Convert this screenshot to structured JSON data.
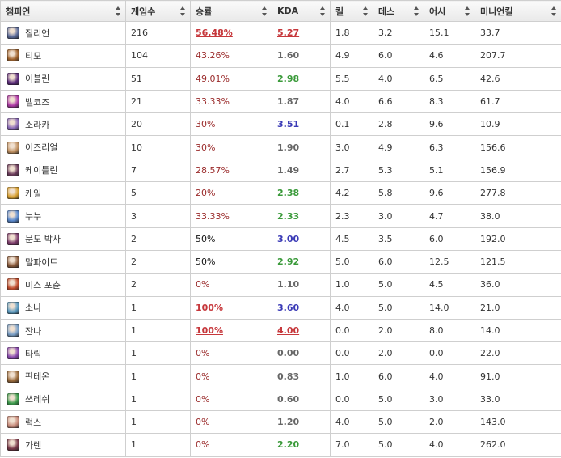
{
  "headers": [
    "챔피언",
    "게임수",
    "승률",
    "KDA",
    "킬",
    "데스",
    "어시",
    "미니언킬"
  ],
  "rows": [
    {
      "champion": "질리언",
      "games": "216",
      "winrate": "56.48%",
      "kda": "5.27",
      "kills": "1.8",
      "deaths": "3.2",
      "assists": "15.1",
      "cs": "33.7",
      "icon_color": "#5b6b9a"
    },
    {
      "champion": "티모",
      "games": "104",
      "winrate": "43.26%",
      "kda": "1.60",
      "kills": "4.9",
      "deaths": "6.0",
      "assists": "4.6",
      "cs": "207.7",
      "icon_color": "#a0622c"
    },
    {
      "champion": "이블린",
      "games": "51",
      "winrate": "49.01%",
      "kda": "2.98",
      "kills": "5.5",
      "deaths": "4.0",
      "assists": "6.5",
      "cs": "42.6",
      "icon_color": "#5a2a7a"
    },
    {
      "champion": "벨코즈",
      "games": "21",
      "winrate": "33.33%",
      "kda": "1.87",
      "kills": "4.0",
      "deaths": "6.6",
      "assists": "8.3",
      "cs": "61.7",
      "icon_color": "#b03aa8"
    },
    {
      "champion": "소라카",
      "games": "20",
      "winrate": "30%",
      "kda": "3.51",
      "kills": "0.1",
      "deaths": "2.8",
      "assists": "9.6",
      "cs": "10.9",
      "icon_color": "#8a6ab8"
    },
    {
      "champion": "이즈리얼",
      "games": "10",
      "winrate": "30%",
      "kda": "1.90",
      "kills": "3.0",
      "deaths": "4.9",
      "assists": "6.3",
      "cs": "156.6",
      "icon_color": "#c09060"
    },
    {
      "champion": "케이틀린",
      "games": "7",
      "winrate": "28.57%",
      "kda": "1.49",
      "kills": "2.7",
      "deaths": "5.3",
      "assists": "5.1",
      "cs": "156.9",
      "icon_color": "#6a3a5a"
    },
    {
      "champion": "케일",
      "games": "5",
      "winrate": "20%",
      "kda": "2.38",
      "kills": "4.2",
      "deaths": "5.8",
      "assists": "9.6",
      "cs": "277.8",
      "icon_color": "#d8a030"
    },
    {
      "champion": "누누",
      "games": "3",
      "winrate": "33.33%",
      "kda": "2.33",
      "kills": "2.3",
      "deaths": "3.0",
      "assists": "4.7",
      "cs": "38.0",
      "icon_color": "#5a8ad0"
    },
    {
      "champion": "문도 박사",
      "games": "2",
      "winrate": "50%",
      "kda": "3.00",
      "kills": "4.5",
      "deaths": "3.5",
      "assists": "6.0",
      "cs": "192.0",
      "icon_color": "#7a3a6a"
    },
    {
      "champion": "말파이트",
      "games": "2",
      "winrate": "50%",
      "kda": "2.92",
      "kills": "5.0",
      "deaths": "6.0",
      "assists": "12.5",
      "cs": "121.5",
      "icon_color": "#8a5a3a"
    },
    {
      "champion": "미스 포츈",
      "games": "2",
      "winrate": "0%",
      "kda": "1.10",
      "kills": "1.0",
      "deaths": "5.0",
      "assists": "4.5",
      "cs": "36.0",
      "icon_color": "#c04a2a"
    },
    {
      "champion": "소나",
      "games": "1",
      "winrate": "100%",
      "kda": "3.60",
      "kills": "4.0",
      "deaths": "5.0",
      "assists": "14.0",
      "cs": "21.0",
      "icon_color": "#5a9ac0"
    },
    {
      "champion": "잔나",
      "games": "1",
      "winrate": "100%",
      "kda": "4.00",
      "kills": "0.0",
      "deaths": "2.0",
      "assists": "8.0",
      "cs": "14.0",
      "icon_color": "#7aa0c8"
    },
    {
      "champion": "타릭",
      "games": "1",
      "winrate": "0%",
      "kda": "0.00",
      "kills": "0.0",
      "deaths": "2.0",
      "assists": "0.0",
      "cs": "22.0",
      "icon_color": "#8a4ab0"
    },
    {
      "champion": "판테온",
      "games": "1",
      "winrate": "0%",
      "kda": "0.83",
      "kills": "1.0",
      "deaths": "6.0",
      "assists": "4.0",
      "cs": "91.0",
      "icon_color": "#9a6a3a"
    },
    {
      "champion": "쓰레쉬",
      "games": "1",
      "winrate": "0%",
      "kda": "0.60",
      "kills": "0.0",
      "deaths": "5.0",
      "assists": "3.0",
      "cs": "33.0",
      "icon_color": "#3a9a4a"
    },
    {
      "champion": "럭스",
      "games": "1",
      "winrate": "0%",
      "kda": "1.20",
      "kills": "4.0",
      "deaths": "5.0",
      "assists": "2.0",
      "cs": "143.0",
      "icon_color": "#c88a7a"
    },
    {
      "champion": "가렌",
      "games": "1",
      "winrate": "0%",
      "kda": "2.20",
      "kills": "7.0",
      "deaths": "5.0",
      "assists": "4.0",
      "cs": "262.0",
      "icon_color": "#7a3a4a"
    }
  ],
  "colors": {
    "win_high": "#c6373b",
    "kda_blue": "#3a3ab6",
    "kda_green": "#3a9a3a",
    "kda_gray": "#666666"
  }
}
